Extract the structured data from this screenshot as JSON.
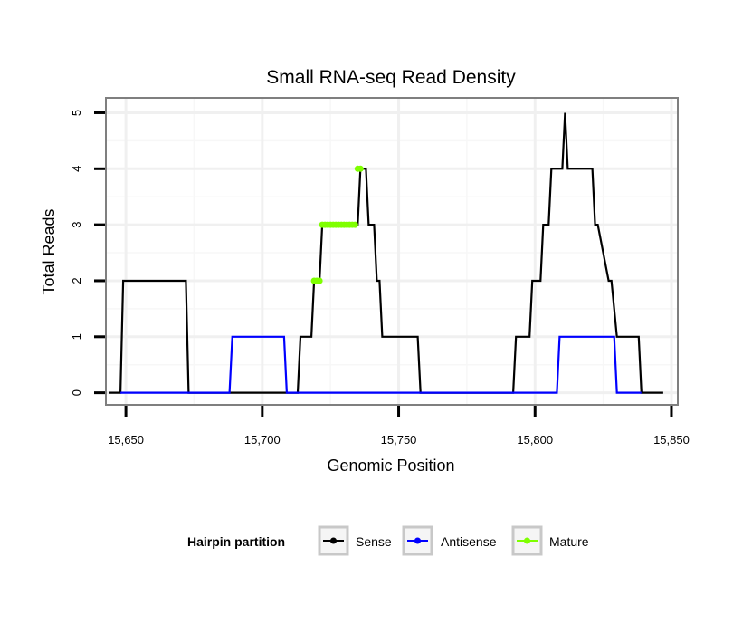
{
  "chart_data": {
    "type": "line",
    "title": "Small RNA-seq Read Density",
    "xlabel": "Genomic Position",
    "ylabel": "Total Reads",
    "xlim": [
      15643,
      15852
    ],
    "ylim": [
      -0.2,
      5.25
    ],
    "x_ticks": [
      15650,
      15700,
      15750,
      15800,
      15850
    ],
    "x_tick_labels": [
      "15,650",
      "15,700",
      "15,750",
      "15,800",
      "15,850"
    ],
    "y_ticks": [
      0,
      1,
      2,
      3,
      4,
      5
    ],
    "y_tick_labels": [
      "0",
      "1",
      "2",
      "3",
      "4",
      "5"
    ],
    "grid": true,
    "legend": {
      "title": "Hairpin partition",
      "position": "bottom"
    },
    "series": [
      {
        "name": "Sense",
        "color": "#000000",
        "x": [
          15644,
          15648,
          15649,
          15672,
          15673,
          15713,
          15714,
          15718,
          15719,
          15721,
          15722,
          15735,
          15736,
          15738,
          15739,
          15741,
          15742,
          15743,
          15744,
          15757,
          15758,
          15792,
          15793,
          15798,
          15799,
          15802,
          15803,
          15805,
          15806,
          15810,
          15811,
          15812,
          15821,
          15822,
          15823,
          15827,
          15828,
          15830,
          15831,
          15838,
          15839,
          15847
        ],
        "y": [
          0,
          0,
          2,
          2,
          0,
          0,
          1,
          1,
          2,
          2,
          3,
          3,
          4,
          4,
          3,
          3,
          2,
          2,
          1,
          1,
          0,
          0,
          1,
          1,
          2,
          2,
          3,
          3,
          4,
          4,
          5,
          4,
          4,
          3,
          3,
          2,
          2,
          1,
          1,
          1,
          0,
          0
        ]
      },
      {
        "name": "Antisense",
        "color": "#0000ff",
        "x": [
          15648,
          15688,
          15689,
          15708,
          15709,
          15808,
          15809,
          15829,
          15830,
          15839
        ],
        "y": [
          0,
          0,
          1,
          1,
          0,
          0,
          1,
          1,
          0,
          0
        ]
      },
      {
        "name": "Mature",
        "color": "#7fff00",
        "x": [
          15719,
          15720,
          15721,
          15722,
          15723,
          15724,
          15725,
          15726,
          15727,
          15728,
          15729,
          15730,
          15731,
          15732,
          15733,
          15734,
          15735,
          15736
        ],
        "y": [
          2,
          2,
          2,
          3,
          3,
          3,
          3,
          3,
          3,
          3,
          3,
          3,
          3,
          3,
          3,
          3,
          4,
          4
        ]
      }
    ]
  }
}
